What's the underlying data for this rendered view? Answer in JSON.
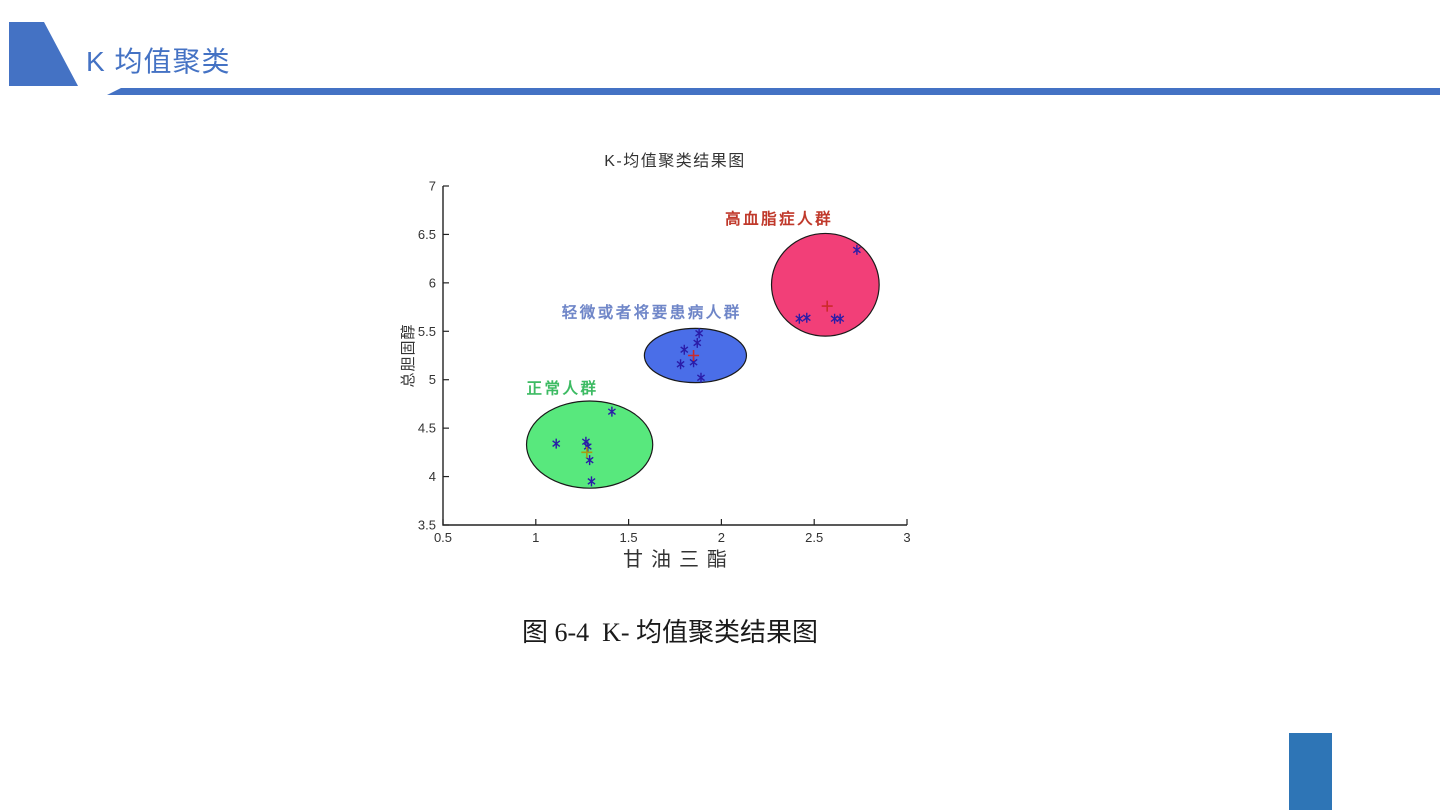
{
  "slide": {
    "header": {
      "title": "K 均值聚类",
      "accent_color": "#4472c4"
    },
    "caption": "图 6-4  K- 均值聚类结果图",
    "accent_rect_color": "#2e75b6"
  },
  "chart_data": {
    "type": "scatter",
    "title": "K-均值聚类结果图",
    "xlabel": "甘油三酯",
    "ylabel": "总胆固醇",
    "xlim": [
      0.5,
      3
    ],
    "ylim": [
      3.5,
      7
    ],
    "xticks": [
      0.5,
      1,
      1.5,
      2,
      2.5,
      3
    ],
    "yticks": [
      3.5,
      4,
      4.5,
      5,
      5.5,
      6,
      6.5,
      7
    ],
    "grid": false,
    "legend": "none",
    "axis_color": "#222222",
    "point_color": "#2a1ca8",
    "point_marker": "asterisk",
    "centroid_marker": "plus",
    "clusters": [
      {
        "name": "正常人群",
        "label_color": "#3dbb63",
        "label_pos": [
          0.95,
          4.86
        ],
        "ellipse": {
          "cx": 1.29,
          "cy": 4.33,
          "rx": 0.34,
          "ry": 0.45,
          "fill": "#58e87d",
          "outline": "#1a1a1a"
        },
        "points": [
          [
            1.41,
            4.67
          ],
          [
            1.11,
            4.34
          ],
          [
            1.27,
            4.36
          ],
          [
            1.28,
            4.31
          ],
          [
            1.29,
            4.17
          ],
          [
            1.3,
            3.95
          ]
        ],
        "centroid": {
          "x": 1.275,
          "y": 4.25,
          "color": "#a89a10"
        }
      },
      {
        "name": "轻微或者将要患病人群",
        "label_color": "#6f86c8",
        "label_pos": [
          1.14,
          5.64
        ],
        "ellipse": {
          "cx": 1.86,
          "cy": 5.25,
          "rx": 0.275,
          "ry": 0.28,
          "fill": "#4a6ee8",
          "outline": "#1a1a1a"
        },
        "points": [
          [
            1.88,
            5.48
          ],
          [
            1.87,
            5.38
          ],
          [
            1.8,
            5.31
          ],
          [
            1.78,
            5.16
          ],
          [
            1.85,
            5.18
          ],
          [
            1.89,
            5.02
          ]
        ],
        "centroid": {
          "x": 1.85,
          "y": 5.25,
          "color": "#cc2a2a"
        }
      },
      {
        "name": "高血脂症人群",
        "label_color": "#c0392b",
        "label_pos": [
          2.02,
          6.61
        ],
        "ellipse": {
          "cx": 2.56,
          "cy": 5.98,
          "rx": 0.29,
          "ry": 0.53,
          "fill": "#f23f78",
          "outline": "#1a1a1a"
        },
        "points": [
          [
            2.73,
            6.34
          ],
          [
            2.42,
            5.63
          ],
          [
            2.46,
            5.64
          ],
          [
            2.61,
            5.63
          ],
          [
            2.64,
            5.63
          ]
        ],
        "centroid": {
          "x": 2.57,
          "y": 5.76,
          "color": "#cc2a2a"
        }
      }
    ]
  }
}
